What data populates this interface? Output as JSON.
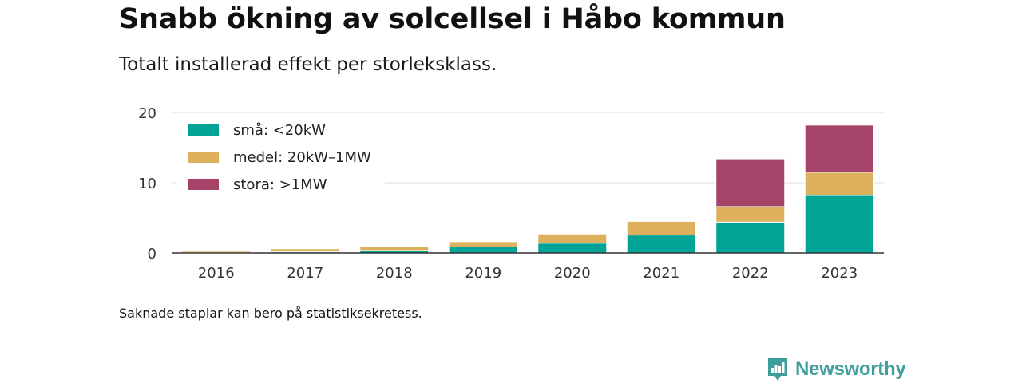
{
  "title": "Snabb ökning av solcellsel i Håbo kommun",
  "subtitle": "Totalt installerad effekt per storleksklass.",
  "note": "Saknade staplar kan bero på statistiksekretess.",
  "brand": {
    "name": "Newsworthy",
    "icon": "newsworthy-logo-icon"
  },
  "colors": {
    "sma": "#00a396",
    "medel": "#dcb05c",
    "stora": "#a54369",
    "grid": "#dddddd",
    "axis": "#333333"
  },
  "chart_data": {
    "type": "bar",
    "stacked": true,
    "categories": [
      "2016",
      "2017",
      "2018",
      "2019",
      "2020",
      "2021",
      "2022",
      "2023"
    ],
    "series": [
      {
        "name": "små: <20kW",
        "color": "#00a396",
        "values": [
          0.05,
          0.15,
          0.35,
          0.85,
          1.4,
          2.55,
          4.4,
          8.2
        ]
      },
      {
        "name": "medel: 20kW–1MW",
        "color": "#dcb05c",
        "values": [
          0.2,
          0.45,
          0.5,
          0.75,
          1.3,
          1.95,
          2.2,
          3.3
        ]
      },
      {
        "name": "stora: >1MW",
        "color": "#a54369",
        "values": [
          0,
          0,
          0,
          0,
          0,
          0,
          6.8,
          6.7
        ]
      }
    ],
    "yticks": [
      0,
      10,
      20
    ],
    "ylim": [
      0,
      20
    ],
    "xlabel": "",
    "ylabel": "",
    "grid": true,
    "legend_position": "top-left"
  }
}
